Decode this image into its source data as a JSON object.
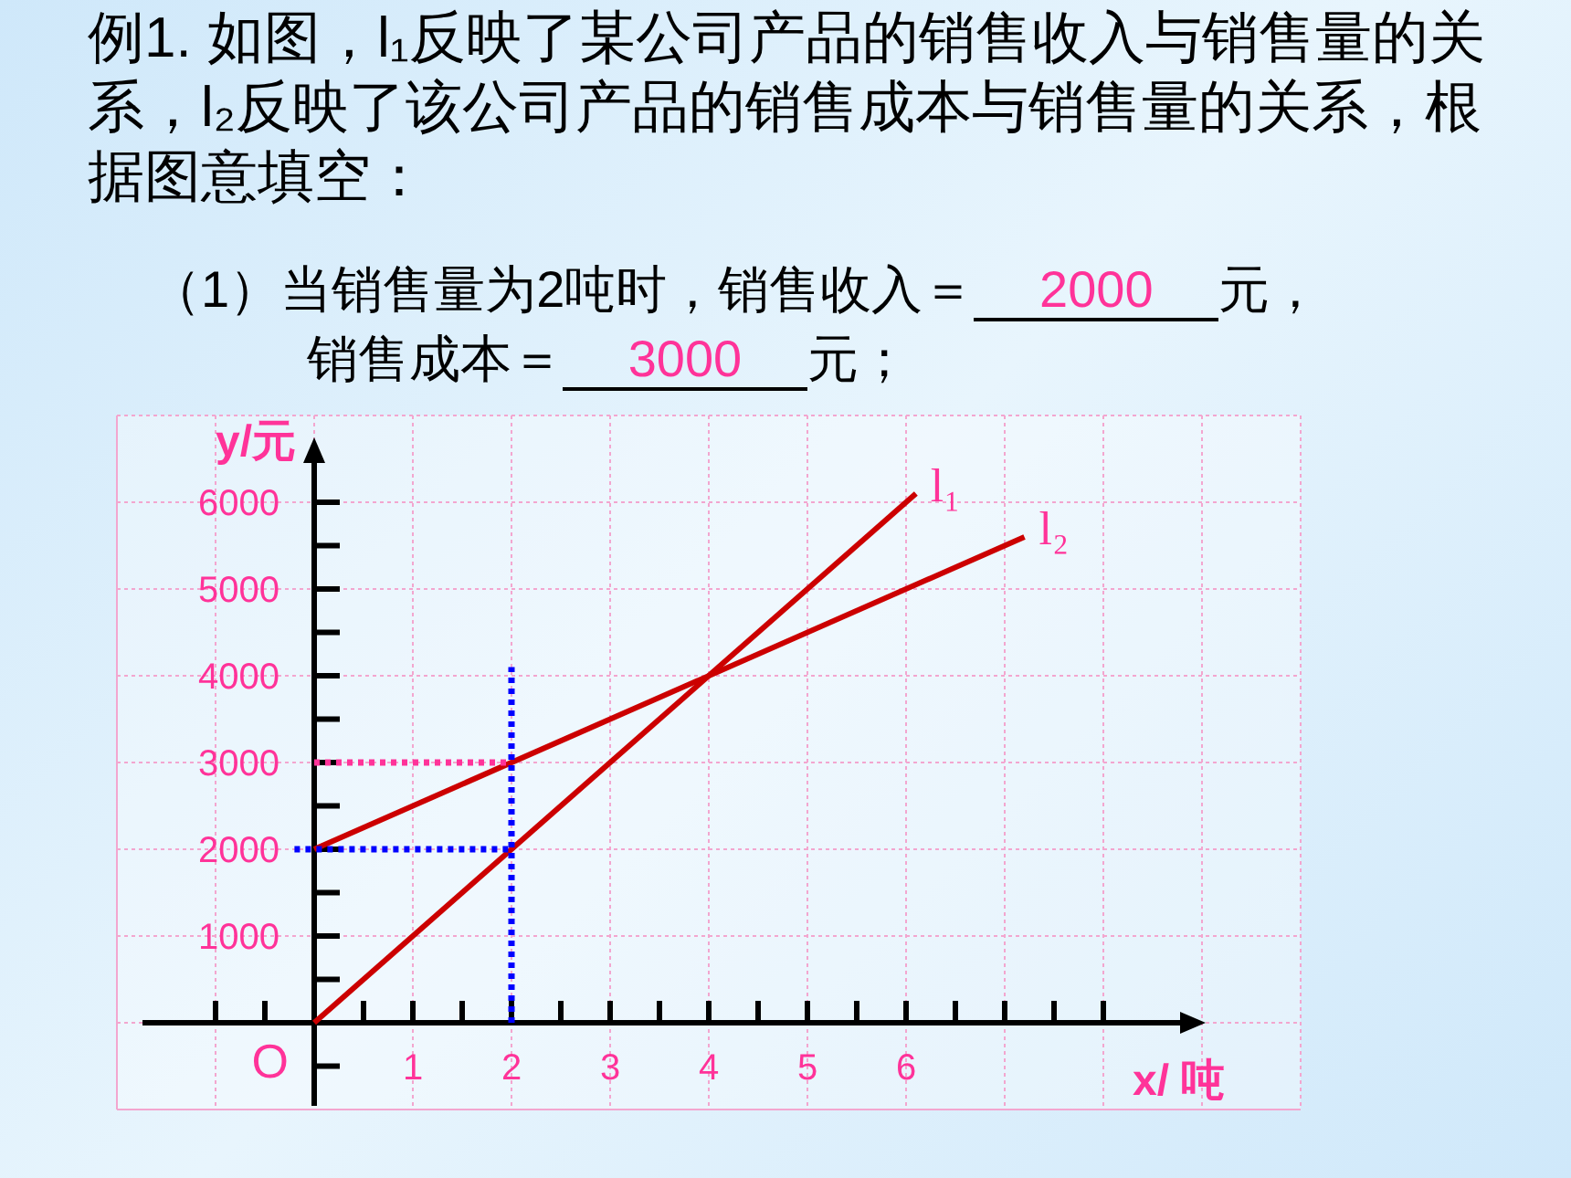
{
  "chart_data": {
    "type": "line",
    "title": "例1. 如图，l₁反映了某公司产品的销售收入与销售量的关系，l₂反映了该公司产品的销售成本与销售量的关系，根据图意填空：",
    "xlabel": "x/ 吨",
    "ylabel": "y/元",
    "xlim": [
      -2,
      10
    ],
    "ylim": [
      -1000,
      7000
    ],
    "xticks": [
      {
        "value": -1,
        "label": null
      },
      {
        "value": -0.5,
        "label": null
      },
      {
        "value": 0.5,
        "label": null
      },
      1,
      {
        "value": 1.5,
        "label": null
      },
      2,
      {
        "value": 2.5,
        "label": null
      },
      3,
      {
        "value": 3.5,
        "label": null
      },
      4,
      {
        "value": 4.5,
        "label": null
      },
      5,
      {
        "value": 5.5,
        "label": null
      },
      6,
      {
        "value": 6.5,
        "label": null
      },
      {
        "value": 7,
        "label": null
      },
      {
        "value": 7.5,
        "label": null
      },
      {
        "value": 8,
        "label": null
      }
    ],
    "yticks": [
      {
        "value": -500,
        "label": null
      },
      {
        "value": 500,
        "label": null
      },
      1000,
      {
        "value": 1500,
        "label": null
      },
      2000,
      {
        "value": 2500,
        "label": null
      },
      3000,
      {
        "value": 3500,
        "label": null
      },
      4000,
      {
        "value": 4500,
        "label": null
      },
      5000,
      {
        "value": 5500,
        "label": null
      },
      6000
    ],
    "grid": true,
    "series": [
      {
        "name": "l₁",
        "color": "#cc0000",
        "x": [
          0,
          6.1
        ],
        "values": [
          0,
          6100
        ]
      },
      {
        "name": "l₂",
        "color": "#cc0000",
        "x": [
          0,
          7.2
        ],
        "values": [
          2000,
          5600
        ]
      },
      {
        "color": "#0000ff",
        "x": [
          2,
          2
        ],
        "values": [
          0,
          4100
        ],
        "line_style": "dotted"
      },
      {
        "color": "#0000ff",
        "x": [
          -0.2,
          2
        ],
        "values": [
          2000,
          2000
        ],
        "line_style": "dotted"
      },
      {
        "color": "#ff3399",
        "x": [
          0,
          2
        ],
        "values": [
          3000,
          3000
        ],
        "line_style": "dotted"
      }
    ],
    "annotations": [
      "（1）当销售量为2吨时，销售收入＝",
      "2000",
      "元，",
      "销售成本＝",
      "3000",
      "元；",
      {
        "text": "O",
        "x": 0,
        "y": 0
      }
    ]
  }
}
